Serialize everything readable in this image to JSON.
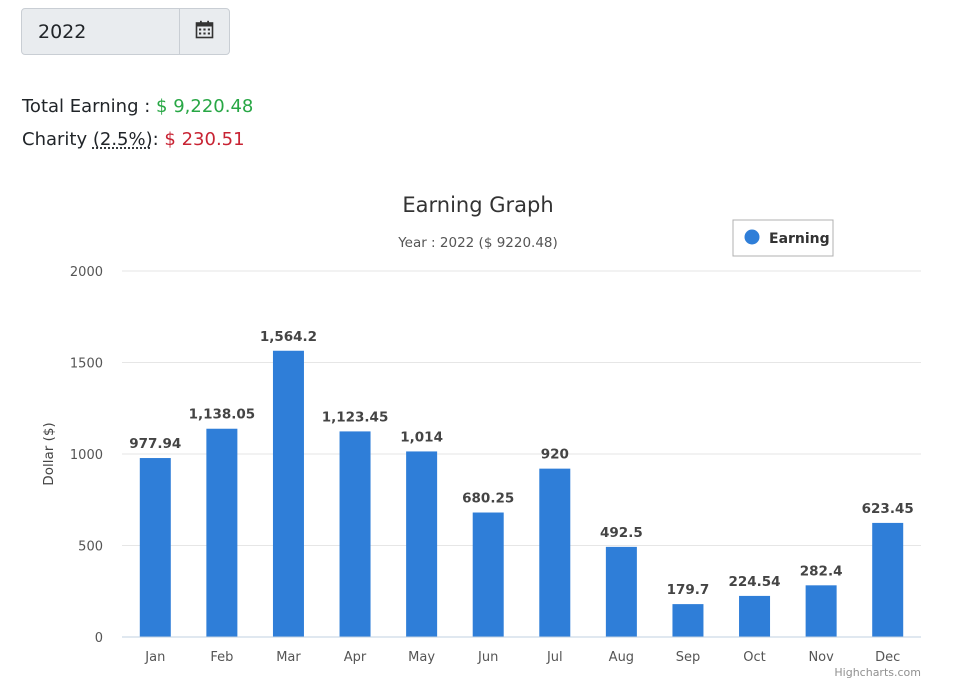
{
  "year_picker": {
    "value": "2022",
    "icon": "calendar-icon"
  },
  "summary": {
    "total_label": "Total Earning",
    "total_sep": " : ",
    "total_value": "$ 9,220.48",
    "charity_label": "Charity ",
    "charity_abbr": "(2.5%)",
    "charity_sep": ": ",
    "charity_value": "$ 230.51"
  },
  "chart_data": {
    "type": "bar",
    "title": "Earning Graph",
    "subtitle": "Year : 2022 ($ 9220.48)",
    "xlabel": "",
    "ylabel": "Dollar ($)",
    "ylim": [
      0,
      2000
    ],
    "yticks": [
      "0",
      "500",
      "1000",
      "1500",
      "2000"
    ],
    "grid": true,
    "legend_position": "top-right",
    "categories": [
      "Jan",
      "Feb",
      "Mar",
      "Apr",
      "May",
      "Jun",
      "Jul",
      "Aug",
      "Sep",
      "Oct",
      "Nov",
      "Dec"
    ],
    "series": [
      {
        "name": "Earning",
        "color": "#2f7ed8",
        "values": [
          977.94,
          1138.05,
          1564.2,
          1123.45,
          1014,
          680.25,
          920,
          492.5,
          179.7,
          224.54,
          282.4,
          623.45
        ],
        "labels": [
          "977.94",
          "1,138.05",
          "1,564.2",
          "1,123.45",
          "1,014",
          "680.25",
          "920",
          "492.5",
          "179.7",
          "224.54",
          "282.4",
          "623.45"
        ]
      }
    ],
    "credits": "Highcharts.com"
  }
}
